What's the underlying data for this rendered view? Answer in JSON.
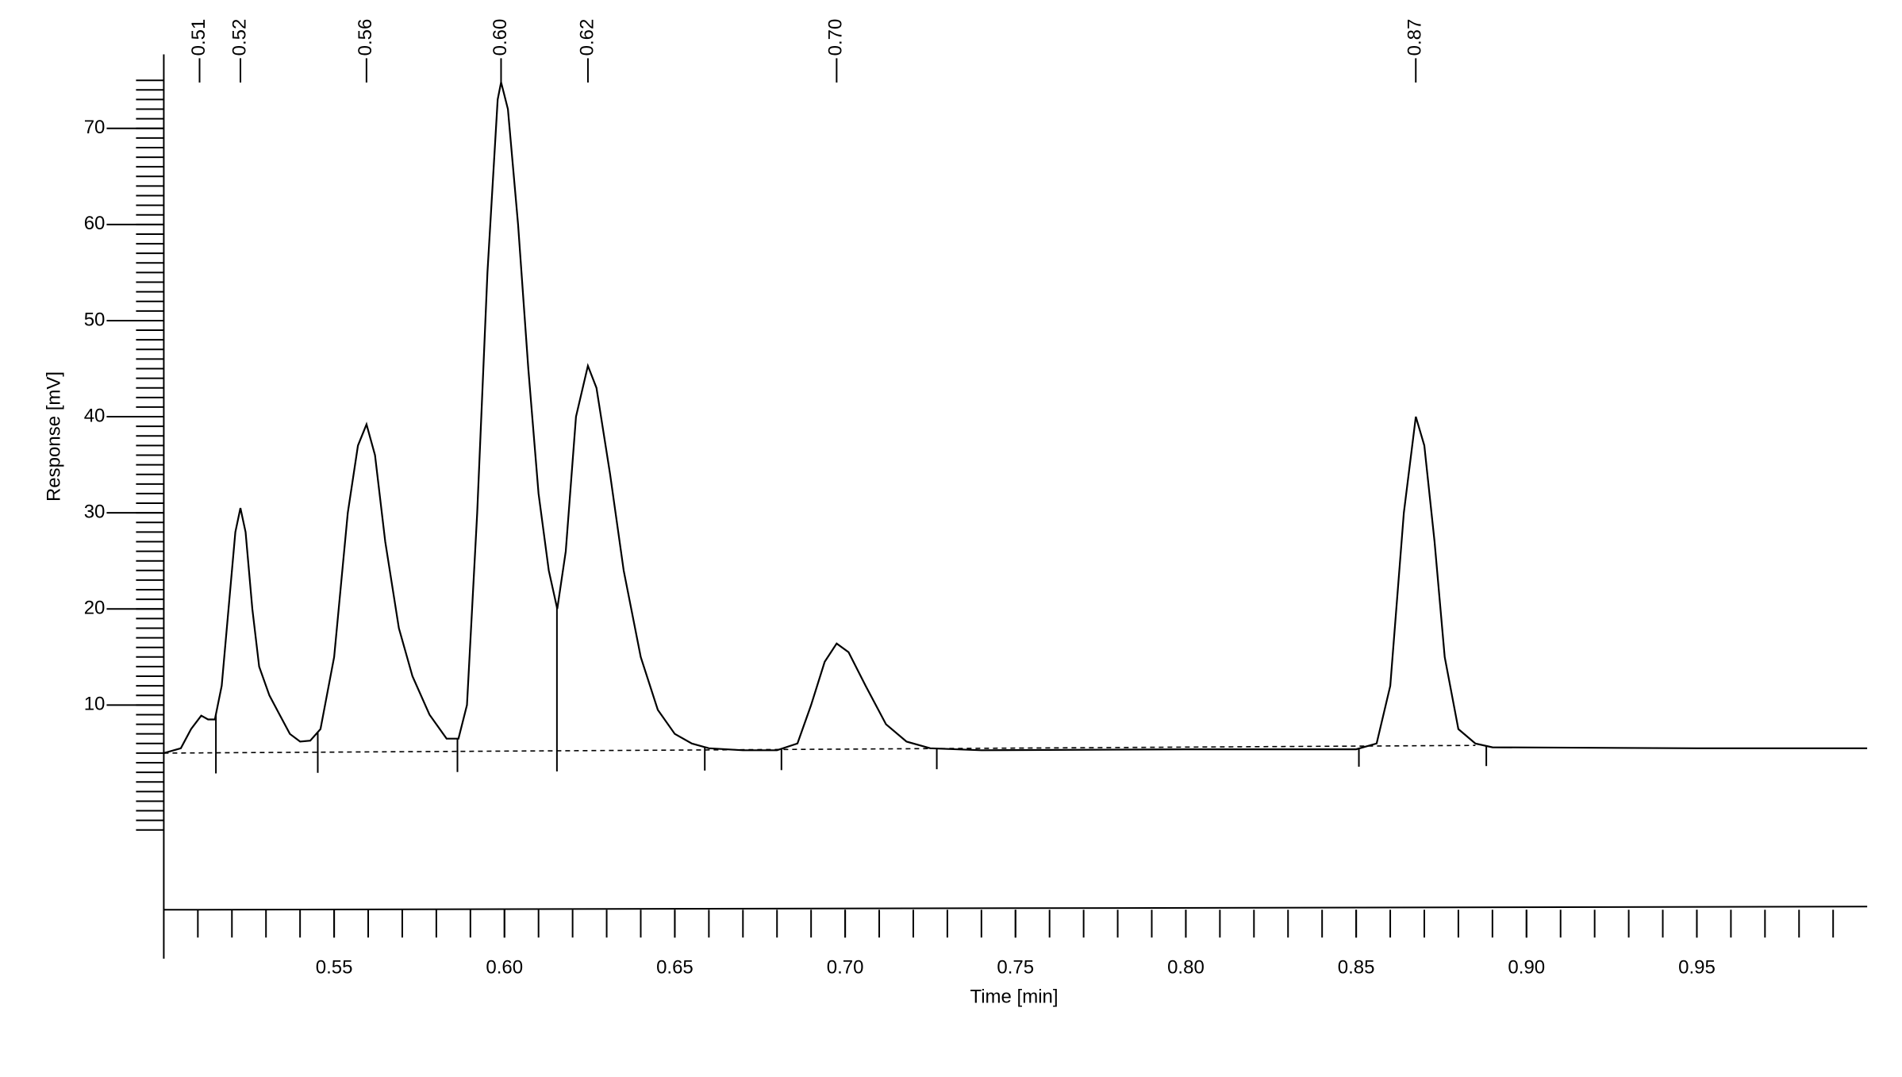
{
  "chart_data": {
    "type": "line",
    "xlabel": "Time [min]",
    "ylabel": "Response [mV]",
    "xlim": [
      0.5,
      1.0
    ],
    "ylim": [
      -11.3,
      77.7
    ],
    "xticks": [
      0.55,
      0.6,
      0.65,
      0.7,
      0.75,
      0.8,
      0.85,
      0.9,
      0.95
    ],
    "xticks_labels": [
      "0.55",
      "0.60",
      "0.65",
      "0.70",
      "0.75",
      "0.80",
      "0.85",
      "0.90",
      "0.95"
    ],
    "xminorticks": [
      0.51,
      0.52,
      0.53,
      0.54,
      0.55,
      0.56,
      0.57,
      0.58,
      0.59,
      0.6,
      0.61,
      0.62,
      0.63,
      0.64,
      0.65,
      0.66,
      0.67,
      0.68,
      0.69,
      0.7,
      0.71,
      0.72,
      0.73,
      0.74,
      0.75,
      0.76,
      0.77,
      0.78,
      0.79,
      0.8,
      0.81,
      0.82,
      0.83,
      0.84,
      0.85,
      0.86,
      0.87,
      0.88,
      0.89,
      0.9,
      0.91,
      0.92,
      0.93,
      0.94,
      0.95,
      0.96,
      0.97,
      0.98,
      0.99
    ],
    "yticks": [
      10,
      20,
      30,
      40,
      50,
      60,
      70
    ],
    "yminorticks": [
      -3,
      -2,
      -1,
      0,
      1,
      2,
      3,
      4,
      5,
      6,
      7,
      8,
      9,
      10,
      11,
      12,
      13,
      14,
      15,
      16,
      17,
      18,
      19,
      20,
      21,
      22,
      23,
      24,
      25,
      26,
      27,
      28,
      29,
      30,
      31,
      32,
      33,
      34,
      35,
      36,
      37,
      38,
      39,
      40,
      41,
      42,
      43,
      44,
      45,
      46,
      47,
      48,
      49,
      50,
      51,
      52,
      53,
      54,
      55,
      56,
      57,
      58,
      59,
      60,
      61,
      62,
      63,
      64,
      65,
      66,
      67,
      68,
      69,
      70,
      71,
      72,
      73,
      74,
      75
    ],
    "series": [
      {
        "color": "#000000",
        "x": [
          0.5,
          0.505,
          0.508,
          0.511,
          0.513,
          0.515,
          0.517,
          0.519,
          0.521,
          0.5225,
          0.524,
          0.526,
          0.528,
          0.531,
          0.534,
          0.537,
          0.54,
          0.543,
          0.546,
          0.55,
          0.554,
          0.557,
          0.5595,
          0.562,
          0.565,
          0.569,
          0.573,
          0.578,
          0.583,
          0.5865,
          0.589,
          0.592,
          0.595,
          0.598,
          0.599,
          0.601,
          0.604,
          0.607,
          0.61,
          0.613,
          0.6155,
          0.618,
          0.621,
          0.6245,
          0.627,
          0.631,
          0.635,
          0.64,
          0.645,
          0.65,
          0.655,
          0.66,
          0.67,
          0.68,
          0.686,
          0.69,
          0.694,
          0.6975,
          0.701,
          0.706,
          0.712,
          0.718,
          0.725,
          0.74,
          0.8,
          0.85,
          0.856,
          0.86,
          0.864,
          0.8675,
          0.87,
          0.873,
          0.876,
          0.88,
          0.885,
          0.89,
          0.95,
          1.0
        ],
        "values": [
          5.0,
          5.5,
          7.5,
          8.9,
          8.5,
          8.5,
          12,
          20,
          28,
          30.5,
          28,
          20,
          14,
          11,
          9,
          7,
          6.2,
          6.3,
          7.5,
          15,
          30,
          37,
          39.2,
          36,
          27,
          18,
          13,
          9,
          6.5,
          6.5,
          10,
          30,
          55,
          73,
          74.8,
          72,
          60,
          45,
          32,
          24,
          20,
          26,
          40,
          45.3,
          43,
          34,
          24,
          15,
          9.5,
          7,
          6,
          5.5,
          5.3,
          5.3,
          6,
          10,
          14.5,
          16.4,
          15.5,
          12,
          8,
          6.2,
          5.5,
          5.3,
          5.4,
          5.4,
          6,
          12,
          30,
          40,
          37,
          27,
          15,
          7.5,
          6,
          5.6,
          5.5,
          5.5
        ]
      }
    ],
    "baseline": {
      "x": [
        0.5,
        0.885
      ],
      "values": [
        5.0,
        5.8
      ]
    },
    "peak_boundaries": [
      0.5153,
      0.5452,
      0.5862,
      0.6154,
      0.6588,
      0.6813,
      0.7269,
      0.8508,
      0.8882
    ],
    "peaks": [
      {
        "time": 0.5105,
        "label": "0.51"
      },
      {
        "time": 0.5225,
        "label": "0.52"
      },
      {
        "time": 0.5595,
        "label": "0.56"
      },
      {
        "time": 0.599,
        "label": "0.60"
      },
      {
        "time": 0.6245,
        "label": "0.62"
      },
      {
        "time": 0.6975,
        "label": "0.70"
      },
      {
        "time": 0.8675,
        "label": "0.87"
      }
    ]
  }
}
